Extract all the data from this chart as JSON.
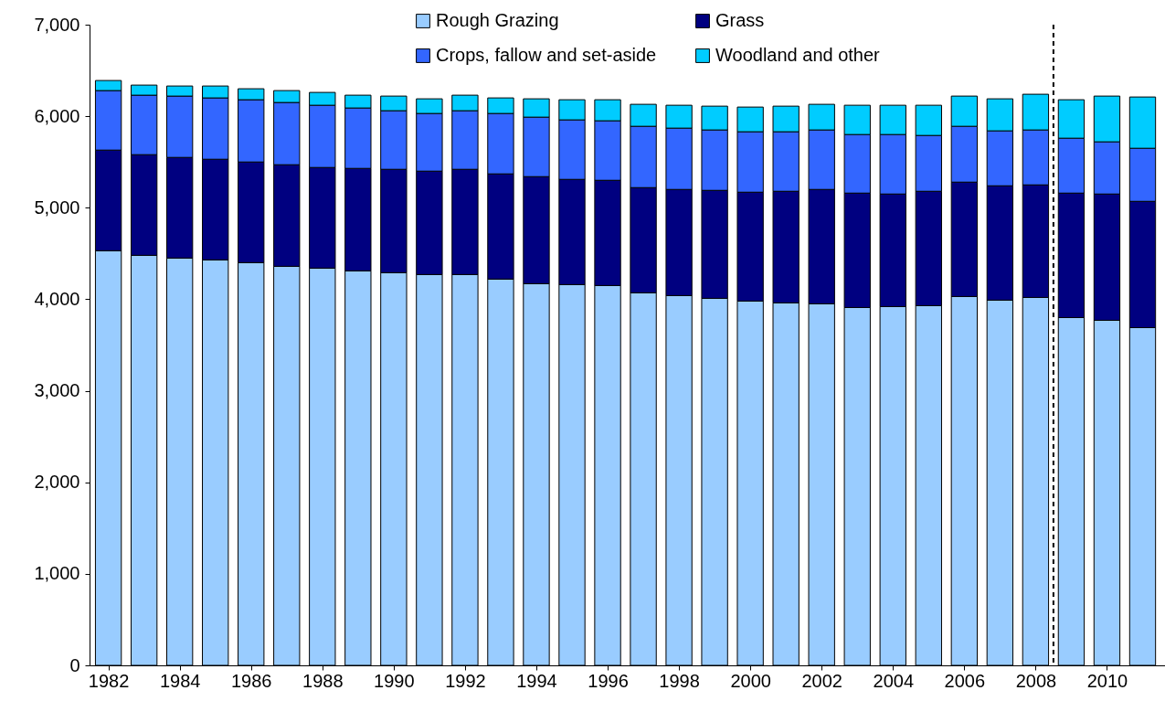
{
  "chart_data": {
    "type": "bar",
    "stacked": true,
    "x": [
      1982,
      1983,
      1984,
      1985,
      1986,
      1987,
      1988,
      1989,
      1990,
      1991,
      1992,
      1993,
      1994,
      1995,
      1996,
      1997,
      1998,
      1999,
      2000,
      2001,
      2002,
      2003,
      2004,
      2005,
      2006,
      2007,
      2008,
      2009,
      2010,
      2011
    ],
    "series": [
      {
        "name": "Rough Grazing",
        "color": "#99ccff",
        "values": [
          4530,
          4480,
          4450,
          4430,
          4400,
          4360,
          4340,
          4310,
          4290,
          4270,
          4270,
          4220,
          4170,
          4160,
          4150,
          4070,
          4040,
          4010,
          3980,
          3960,
          3950,
          3910,
          3920,
          3930,
          4030,
          3990,
          4020,
          3800,
          3770,
          3690
        ]
      },
      {
        "name": "Grass",
        "color": "#000080",
        "values": [
          1100,
          1100,
          1100,
          1100,
          1100,
          1110,
          1100,
          1120,
          1130,
          1130,
          1150,
          1150,
          1170,
          1150,
          1150,
          1150,
          1160,
          1180,
          1190,
          1220,
          1250,
          1250,
          1230,
          1250,
          1250,
          1250,
          1230,
          1360,
          1380,
          1380
        ]
      },
      {
        "name": "Crops, fallow and set-aside",
        "color": "#3366ff",
        "values": [
          650,
          650,
          670,
          670,
          680,
          680,
          680,
          660,
          640,
          630,
          640,
          660,
          650,
          650,
          650,
          670,
          670,
          660,
          660,
          650,
          650,
          640,
          650,
          610,
          610,
          600,
          600,
          600,
          570,
          580
        ]
      },
      {
        "name": "Woodland and other",
        "color": "#00ccff",
        "values": [
          110,
          110,
          110,
          130,
          120,
          130,
          140,
          140,
          160,
          160,
          170,
          170,
          200,
          220,
          230,
          240,
          250,
          260,
          270,
          280,
          280,
          320,
          320,
          330,
          330,
          350,
          390,
          420,
          500,
          560
        ]
      }
    ],
    "xlim": [
      1981.6,
      2011.5
    ],
    "xticks": [
      1982,
      1984,
      1986,
      1988,
      1990,
      1992,
      1994,
      1996,
      1998,
      2000,
      2002,
      2004,
      2006,
      2008,
      2010
    ],
    "ylim": [
      0,
      7000
    ],
    "yticks": [
      0,
      {
        "value": 1000,
        "label": "1,000"
      },
      {
        "value": 2000,
        "label": "2,000"
      },
      {
        "value": 3000,
        "label": "3,000"
      },
      {
        "value": 4000,
        "label": "4,000"
      },
      {
        "value": 5000,
        "label": "5,000"
      },
      {
        "value": 6000,
        "label": "6,000"
      },
      {
        "value": 7000,
        "label": "7,000"
      }
    ],
    "ref_lines": [
      {
        "axis": "x",
        "value": 2008.5,
        "line_style": "dashed",
        "color": "#000000"
      }
    ],
    "legend": "top",
    "grid": false
  }
}
